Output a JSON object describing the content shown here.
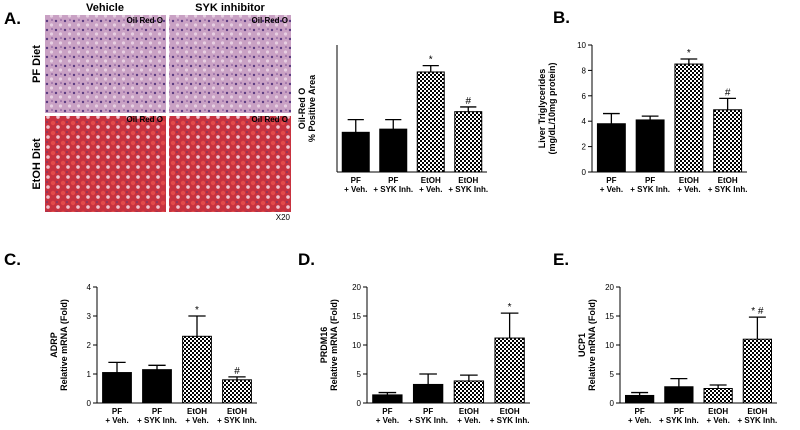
{
  "micrographs": {
    "panel": "A.",
    "columns": [
      "Vehicle",
      "SYK inhibitor"
    ],
    "rows": [
      "PF Diet",
      "EtOH Diet"
    ],
    "stain": [
      "Oil Red O",
      "Oil Red O",
      "Oil Red O",
      "Oil Red O"
    ],
    "magnification": "X20"
  },
  "chart_data": [
    {
      "type": "bar",
      "y_label": [
        "Oil-Red O",
        "% Positive Area"
      ],
      "categories": [
        [
          "PF",
          "+ Veh."
        ],
        [
          "PF",
          "+ SYK Inh."
        ],
        [
          "EtOH",
          "+ Veh."
        ],
        [
          "EtOH",
          "+ SYK Inh."
        ]
      ],
      "values": [
        25,
        27,
        63,
        38
      ],
      "errors": [
        8,
        6,
        4,
        3
      ],
      "marks": [
        null,
        null,
        "*",
        "#"
      ],
      "fills": [
        "solid",
        "solid",
        "checker",
        "checker"
      ],
      "ylim": [
        0,
        80
      ]
    },
    {
      "type": "bar",
      "panel": "B.",
      "y_label": [
        "Liver Triglycerides",
        "(mg/dL/10mg protein)"
      ],
      "categories": [
        [
          "PF",
          "+ Veh."
        ],
        [
          "PF",
          "+ SYK Inh."
        ],
        [
          "EtOH",
          "+ Veh."
        ],
        [
          "EtOH",
          "+ SYK Inh."
        ]
      ],
      "values": [
        3.8,
        4.1,
        8.5,
        4.9
      ],
      "errors": [
        0.8,
        0.3,
        0.4,
        0.9
      ],
      "marks": [
        null,
        null,
        "*",
        "#"
      ],
      "fills": [
        "solid",
        "solid",
        "checker",
        "checker"
      ],
      "ylim": [
        0,
        10
      ],
      "yticks": [
        0,
        2,
        4,
        6,
        8,
        10
      ]
    },
    {
      "type": "bar",
      "panel": "C.",
      "y_label": [
        "ADRP",
        "Relative mRNA  (Fold)"
      ],
      "categories": [
        [
          "PF",
          "+ Veh."
        ],
        [
          "PF",
          "+ SYK Inh."
        ],
        [
          "EtOH",
          "+ Veh."
        ],
        [
          "EtOH",
          "+ SYK Inh."
        ]
      ],
      "values": [
        1.05,
        1.15,
        2.3,
        0.8
      ],
      "errors": [
        0.35,
        0.15,
        0.7,
        0.1
      ],
      "marks": [
        null,
        null,
        "*",
        "#"
      ],
      "fills": [
        "solid",
        "solid",
        "checker",
        "checker"
      ],
      "ylim": [
        0,
        4
      ],
      "yticks": [
        0,
        1,
        2,
        3,
        4
      ]
    },
    {
      "type": "bar",
      "panel": "D.",
      "y_label": [
        "PRDM16",
        "Relative mRNA  (Fold)"
      ],
      "categories": [
        [
          "PF",
          "+ Veh."
        ],
        [
          "PF",
          "+ SYK Inh."
        ],
        [
          "EtOH",
          "+ Veh."
        ],
        [
          "EtOH",
          "+ SYK Inh."
        ]
      ],
      "values": [
        1.4,
        3.2,
        3.8,
        11.2
      ],
      "errors": [
        0.4,
        1.8,
        1.0,
        4.3
      ],
      "marks": [
        null,
        null,
        null,
        "*"
      ],
      "fills": [
        "solid",
        "solid",
        "checker",
        "checker"
      ],
      "ylim": [
        0,
        20
      ],
      "yticks": [
        0,
        5,
        10,
        15,
        20
      ]
    },
    {
      "type": "bar",
      "panel": "E.",
      "y_label": [
        "UCP1",
        "Relative mRNA  (Fold)"
      ],
      "categories": [
        [
          "PF",
          "+ Veh."
        ],
        [
          "PF",
          "+ SYK Inh."
        ],
        [
          "EtOH",
          "+ Veh."
        ],
        [
          "EtOH",
          "+ SYK Inh."
        ]
      ],
      "values": [
        1.3,
        2.8,
        2.5,
        11
      ],
      "errors": [
        0.5,
        1.4,
        0.6,
        3.8
      ],
      "marks": [
        null,
        null,
        null,
        "* #"
      ],
      "fills": [
        "solid",
        "solid",
        "checker",
        "checker"
      ],
      "ylim": [
        0,
        20
      ],
      "yticks": [
        0,
        5,
        10,
        15,
        20
      ]
    }
  ]
}
